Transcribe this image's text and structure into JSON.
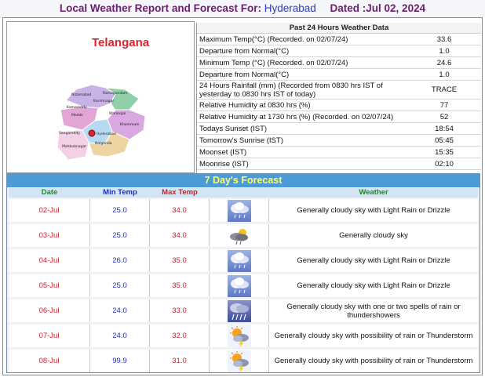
{
  "header": {
    "title_prefix": "Local Weather Report and Forecast For:",
    "city": "Hyderabad",
    "dated": "Dated :Jul 02, 2024"
  },
  "map": {
    "state_name": "Telangana",
    "district_labels": [
      "Nizamabad",
      "Karimnagar",
      "Ramagundam",
      "Medak",
      "Warangal",
      "Khammam",
      "Kamareddy",
      "Hyderabad",
      "Nalgonda",
      "Mahbubnagar",
      "Sangareddy"
    ],
    "highlight_city": "Hyderabad"
  },
  "past24": {
    "title": "Past 24 Hours Weather Data",
    "rows": [
      {
        "label": "Maximum Temp(°C) (Recorded. on 02/07/24)",
        "value": "33.6"
      },
      {
        "label": "Departure from Normal(°C)",
        "value": "1.0"
      },
      {
        "label": "Minimum Temp (°C) (Recorded. on 02/07/24)",
        "value": "24.6"
      },
      {
        "label": "Departure from Normal(°C)",
        "value": "1.0"
      },
      {
        "label": "24 Hours Rainfall (mm) (Recorded from 0830 hrs IST of yesterday to 0830 hrs IST of today)",
        "value": "TRACE"
      },
      {
        "label": "Relative Humidity at 0830 hrs (%)",
        "value": "77"
      },
      {
        "label": "Relative Humidity at 1730 hrs (%) (Recorded. on 02/07/24)",
        "value": "52"
      },
      {
        "label": "Todays Sunset (IST)",
        "value": "18:54"
      },
      {
        "label": "Tomorrow's Sunrise (IST)",
        "value": "05:45"
      },
      {
        "label": "Moonset (IST)",
        "value": "15:35"
      },
      {
        "label": "Moonrise (IST)",
        "value": "02:10"
      }
    ]
  },
  "forecast": {
    "title": "7 Day's Forecast",
    "headers": {
      "date": "Date",
      "min": "Min Temp",
      "max": "Max Temp",
      "weather": "Weather"
    },
    "days": [
      {
        "date": "02-Jul",
        "min": "25.0",
        "max": "34.0",
        "icon": "light-rain-icon",
        "weather": "Generally cloudy sky with Light Rain or Drizzle"
      },
      {
        "date": "03-Jul",
        "min": "25.0",
        "max": "34.0",
        "icon": "cloudy-icon",
        "weather": "Generally cloudy sky"
      },
      {
        "date": "04-Jul",
        "min": "26.0",
        "max": "35.0",
        "icon": "light-rain-icon",
        "weather": "Generally cloudy sky with Light Rain or Drizzle"
      },
      {
        "date": "05-Jul",
        "min": "25.0",
        "max": "35.0",
        "icon": "light-rain-icon",
        "weather": "Generally cloudy sky with Light Rain or Drizzle"
      },
      {
        "date": "06-Jul",
        "min": "24.0",
        "max": "33.0",
        "icon": "rain-spells-icon",
        "weather": "Generally cloudy sky with one or two spells of rain or thundershowers"
      },
      {
        "date": "07-Jul",
        "min": "24.0",
        "max": "32.0",
        "icon": "sun-thunderstorm-icon",
        "weather": "Generally cloudy sky with possibility of rain or Thunderstorm"
      },
      {
        "date": "08-Jul",
        "min": "99.9",
        "max": "31.0",
        "icon": "sun-thunderstorm-icon",
        "weather": "Generally cloudy sky with possibility of rain or Thunderstorm"
      }
    ]
  },
  "colors": {
    "header_title": "#6b1d6e",
    "header_city": "#2c3fb0",
    "forecast_bar": "#4c9bd6",
    "forecast_title": "#ffff66",
    "date_header": "#1c8c26",
    "min_temp": "#1b2fd1",
    "max_temp": "#d1202a"
  }
}
